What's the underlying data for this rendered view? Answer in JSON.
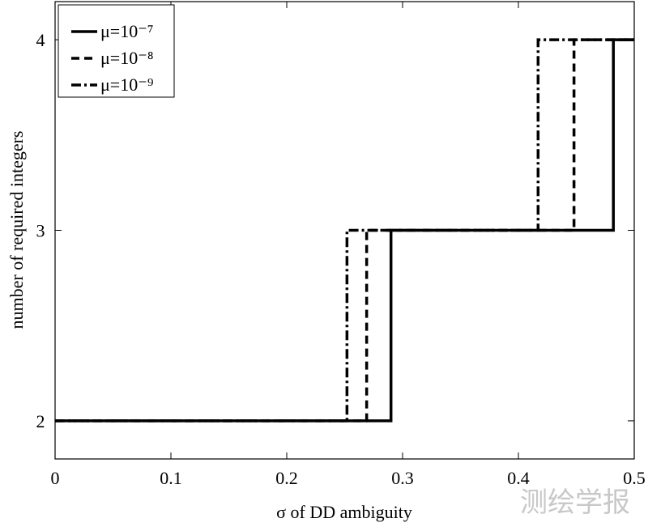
{
  "chart_data": {
    "type": "line",
    "xlabel": "σ of DD ambiguity",
    "ylabel": "number of required integers",
    "xlim": [
      0,
      0.5
    ],
    "ylim": [
      1.8,
      4.2
    ],
    "xticks": [
      0,
      0.1,
      0.2,
      0.3,
      0.4,
      0.5
    ],
    "yticks": [
      2,
      3,
      4
    ],
    "legend": "upper-left",
    "series": [
      {
        "name": "μ=10⁻⁷",
        "color": "#000000",
        "line_style": "solid",
        "x": [
          0,
          0.29,
          0.29,
          0.482,
          0.482,
          0.5
        ],
        "values": [
          2,
          2,
          3,
          3,
          4,
          4
        ]
      },
      {
        "name": "μ=10⁻⁸",
        "color": "#000000",
        "line_style": "dashed",
        "x": [
          0,
          0.269,
          0.269,
          0.448,
          0.448,
          0.5
        ],
        "values": [
          2,
          2,
          3,
          3,
          4,
          4
        ]
      },
      {
        "name": "μ=10⁻⁹",
        "color": "#000000",
        "line_style": "dashdot",
        "x": [
          0,
          0.252,
          0.252,
          0.417,
          0.417,
          0.5
        ],
        "values": [
          2,
          2,
          3,
          3,
          4,
          4
        ]
      }
    ],
    "watermark": "测绘学报"
  }
}
